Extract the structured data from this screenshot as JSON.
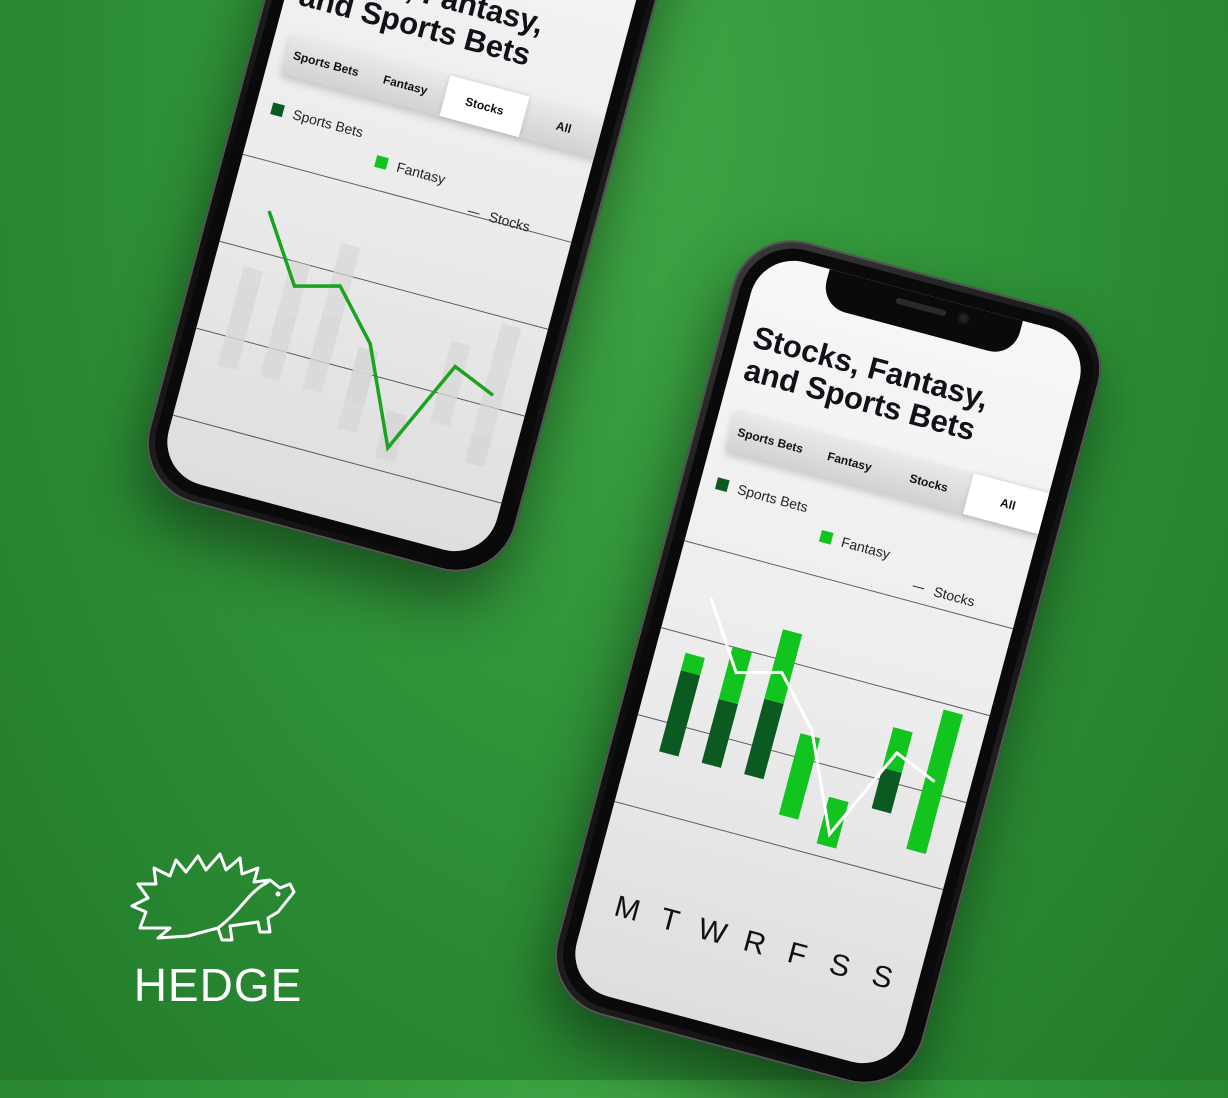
{
  "title": "Stocks, Fantasy, and Sports Bets",
  "title_lines": [
    "Stocks, Fantasy,",
    "and Sports Bets"
  ],
  "tabs": [
    "Sports Bets",
    "Fantasy",
    "Stocks",
    "All"
  ],
  "back_phone": {
    "active_tab": "Stocks"
  },
  "front_phone": {
    "active_tab": "All"
  },
  "legend": {
    "sports_bets": "Sports Bets",
    "fantasy": "Fantasy",
    "stocks": "Stocks"
  },
  "colors": {
    "sports_bets": "#0b5a22",
    "fantasy": "#12c41e",
    "stocks_line_stocks_tab": "#1aa31f",
    "stocks_line_all_tab": "#ffffff",
    "muted_bars": "#d7d7d7"
  },
  "chart_data": [
    {
      "type": "bar",
      "view": "Stocks",
      "categories": [
        "M",
        "T",
        "W",
        "R",
        "F",
        "S",
        "S"
      ],
      "series": [
        {
          "name": "Sports Bets",
          "values": [
            1.4,
            1.1,
            1.3,
            0.9,
            -0.8,
            0.7,
            -0.5
          ]
        },
        {
          "name": "Fantasy",
          "values": [
            0.3,
            0.9,
            1.2,
            -1.4,
            0.8,
            0.7,
            2.4
          ]
        },
        {
          "name": "Stocks",
          "values": [
            1.7,
            0.6,
            0.8,
            0.0,
            -1.6,
            0.0,
            -0.3
          ]
        }
      ]
    },
    {
      "type": "bar",
      "view": "All",
      "categories": [
        "M",
        "T",
        "W",
        "R",
        "F",
        "S",
        "S"
      ],
      "series": [
        {
          "name": "Sports Bets",
          "values": [
            1.4,
            1.1,
            1.3,
            0.9,
            -0.8,
            0.7,
            -0.5
          ]
        },
        {
          "name": "Fantasy",
          "values": [
            0.3,
            0.9,
            1.2,
            -1.4,
            0.8,
            0.7,
            2.4
          ]
        },
        {
          "name": "Stocks",
          "values": [
            1.7,
            0.6,
            0.8,
            0.0,
            -1.6,
            0.0,
            -0.3
          ]
        }
      ]
    }
  ],
  "logo": {
    "text": "HEDGE",
    "icon": "hedgehog-icon"
  }
}
